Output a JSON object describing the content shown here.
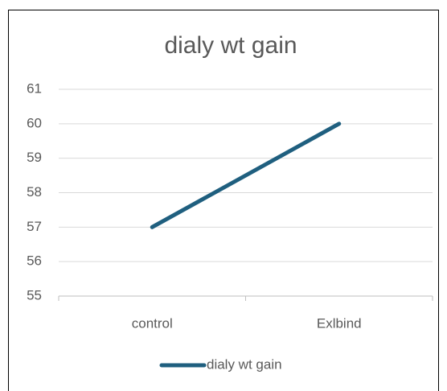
{
  "chart_data": {
    "type": "line",
    "title": "dialy wt gain",
    "categories": [
      "control",
      "Exlbind"
    ],
    "series": [
      {
        "name": "dialy wt gain",
        "color": "#1f5f7f",
        "values": [
          57,
          60
        ]
      }
    ],
    "ylim": [
      55,
      61
    ],
    "yticks": [
      55,
      56,
      57,
      58,
      59,
      60,
      61
    ],
    "grid": true,
    "legend": "bottom"
  }
}
